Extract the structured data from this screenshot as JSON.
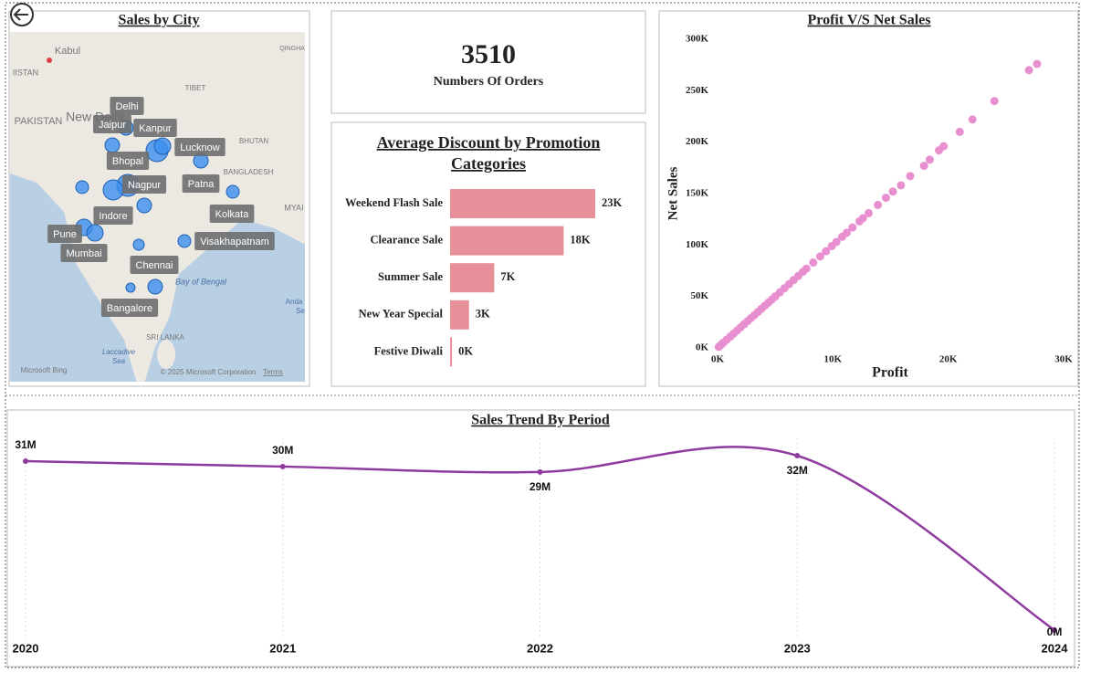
{
  "map": {
    "title": "Sales by City",
    "cities": [
      "Delhi",
      "Jaipur",
      "Kanpur",
      "Lucknow",
      "Bhopal",
      "Nagpur",
      "Patna",
      "Indore",
      "Kolkata",
      "Pune",
      "Mumbai",
      "Visakhapatnam",
      "Chennai",
      "Bangalore"
    ],
    "places": [
      "Kabul",
      "IISTAN",
      "PAKISTAN",
      "New Delhi",
      "TIBET",
      "QINGHA",
      "BHUTAN",
      "BANGLADESH",
      "MYAI",
      "Bay of Bengal",
      "Anda",
      "Se",
      "SRI LANKA",
      "Laccadive",
      "Sea",
      "Microsoft Bing",
      "© 2025 Microsoft Corporation",
      "Terms"
    ]
  },
  "kpi": {
    "value": 3510,
    "label": "Numbers Of Orders"
  },
  "chart_data": [
    {
      "type": "hbar",
      "title": "Average Discount by Promotion Categories",
      "categories": [
        "Weekend Flash Sale",
        "Clearance Sale",
        "Summer Sale",
        "New Year Special",
        "Festive Diwali"
      ],
      "values": [
        23000,
        18000,
        7000,
        3000,
        300
      ],
      "value_labels": [
        "23K",
        "18K",
        "7K",
        "3K",
        "0K"
      ],
      "color": "#e8909a"
    },
    {
      "type": "scatter",
      "title": "Profit V/S Net Sales",
      "xlabel": "Profit",
      "ylabel": "Net Sales",
      "color": "#e88fd0",
      "xlim": [
        0,
        30000
      ],
      "xticks": [
        {
          "value": 0,
          "label": "0K"
        },
        {
          "value": 10000,
          "label": "10K"
        },
        {
          "value": 20000,
          "label": "20K"
        },
        {
          "value": 30000,
          "label": "30K"
        }
      ],
      "ylim": [
        0,
        300000
      ],
      "yticks": [
        {
          "value": 0,
          "label": "0K"
        },
        {
          "value": 50000,
          "label": "50K"
        },
        {
          "value": 100000,
          "label": "100K"
        },
        {
          "value": 150000,
          "label": "150K"
        },
        {
          "value": 200000,
          "label": "200K"
        },
        {
          "value": 250000,
          "label": "250K"
        },
        {
          "value": 300000,
          "label": "300K"
        }
      ],
      "x": [
        27700,
        27000,
        24000,
        22100,
        21000,
        19600,
        19200,
        18400,
        17900,
        16700,
        15900,
        15200,
        14600,
        13900,
        13100,
        12600,
        12300,
        11700,
        11200,
        10800,
        10300,
        9900,
        9400,
        8900,
        8300,
        7700,
        7400,
        7000,
        6600,
        6200,
        5800,
        5400,
        5000,
        4700,
        4400,
        4100,
        3800,
        3500,
        3200,
        2900,
        2600,
        2300,
        2000,
        1700,
        1400,
        1100,
        800,
        500,
        300,
        100
      ],
      "y": [
        276000,
        270000,
        240000,
        222000,
        210000,
        196000,
        192000,
        183000,
        177000,
        167000,
        158000,
        152000,
        146000,
        139000,
        131000,
        126000,
        123000,
        117000,
        112000,
        108000,
        103000,
        99000,
        94000,
        89000,
        83000,
        77000,
        74000,
        70000,
        66000,
        62000,
        58000,
        54000,
        50000,
        47000,
        44000,
        41000,
        38000,
        35000,
        32000,
        29000,
        26000,
        23000,
        20000,
        17000,
        14000,
        11000,
        8000,
        5000,
        3000,
        1000
      ]
    },
    {
      "type": "line",
      "title": "Sales Trend By Period",
      "color": "#8e3a9e",
      "categories": [
        "2020",
        "2021",
        "2022",
        "2023",
        "2024"
      ],
      "values": [
        31000000,
        30000000,
        29000000,
        32000000,
        0
      ],
      "value_labels": [
        "31M",
        "30M",
        "29M",
        "32M",
        "0M"
      ]
    }
  ]
}
